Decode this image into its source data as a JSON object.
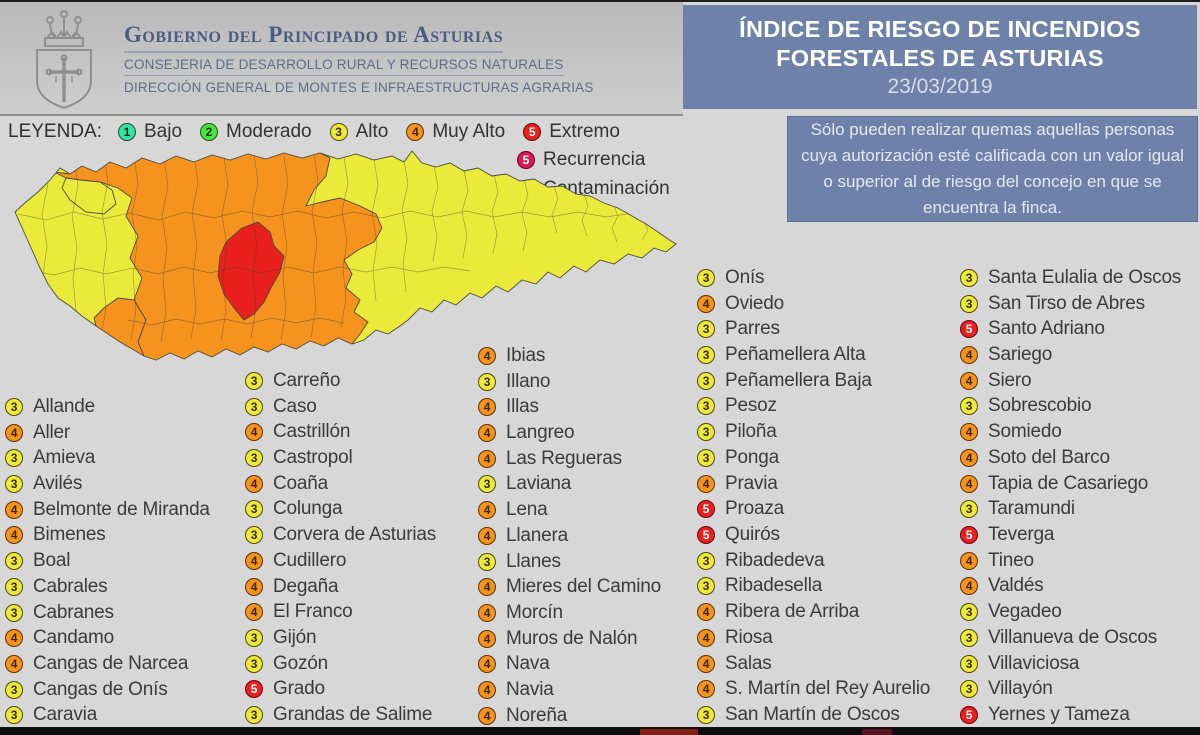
{
  "header": {
    "org_line1": "Gobierno del Principado de Asturias",
    "org_line2": "CONSEJERIA DE DESARROLLO RURAL Y RECURSOS NATURALES",
    "org_line3": "DIRECCIÓN GENERAL DE MONTES E INFRAESTRUCTURAS AGRARIAS",
    "title_line1": "ÍNDICE DE RIESGO DE INCENDIOS",
    "title_line2": "FORESTALES DE ASTURIAS",
    "date": "23/03/2019",
    "title_bg_color": "#6e81a8"
  },
  "legend": {
    "label": "LEYENDA:",
    "items": [
      {
        "value": "1",
        "label": "Bajo",
        "color": "#2fe3ac",
        "light_text": false
      },
      {
        "value": "2",
        "label": "Moderado",
        "color": "#3fe93f",
        "light_text": false
      },
      {
        "value": "3",
        "label": "Alto",
        "color": "#eaea3a",
        "light_text": false
      },
      {
        "value": "4",
        "label": "Muy Alto",
        "color": "#f6921e",
        "light_text": false
      },
      {
        "value": "5",
        "label": "Extremo",
        "color": "#e9201e",
        "light_text": true
      },
      {
        "value": "5",
        "label": "Recurrencia",
        "color": "#d8175c",
        "light_text": true
      },
      {
        "value": "5",
        "label": "Contaminación",
        "color": "#de13a5",
        "light_text": true
      }
    ]
  },
  "notice": {
    "text": "Sólo pueden realizar quemas aquellas personas cuya autorización esté calificada con un valor igual o superior al de riesgo del concejo en que se encuentra la finca."
  },
  "risk_colors": {
    "1": "#2fe3ac",
    "2": "#3fe93f",
    "3": "#eaea3a",
    "4": "#f6921e",
    "5": "#e9201e"
  },
  "municipalities": {
    "columns": [
      [
        {
          "level": 3,
          "name": "Allande"
        },
        {
          "level": 4,
          "name": "Aller"
        },
        {
          "level": 3,
          "name": "Amieva"
        },
        {
          "level": 3,
          "name": "Avilés"
        },
        {
          "level": 4,
          "name": "Belmonte de Miranda"
        },
        {
          "level": 4,
          "name": "Bimenes"
        },
        {
          "level": 3,
          "name": "Boal"
        },
        {
          "level": 3,
          "name": "Cabrales"
        },
        {
          "level": 3,
          "name": "Cabranes"
        },
        {
          "level": 4,
          "name": "Candamo"
        },
        {
          "level": 4,
          "name": "Cangas de Narcea"
        },
        {
          "level": 3,
          "name": "Cangas de Onís"
        },
        {
          "level": 3,
          "name": "Caravia"
        }
      ],
      [
        {
          "level": 3,
          "name": "Carreño"
        },
        {
          "level": 3,
          "name": "Caso"
        },
        {
          "level": 4,
          "name": "Castrillón"
        },
        {
          "level": 3,
          "name": "Castropol"
        },
        {
          "level": 4,
          "name": "Coaña"
        },
        {
          "level": 3,
          "name": "Colunga"
        },
        {
          "level": 3,
          "name": "Corvera de Asturias"
        },
        {
          "level": 4,
          "name": "Cudillero"
        },
        {
          "level": 4,
          "name": "Degaña"
        },
        {
          "level": 4,
          "name": "El Franco"
        },
        {
          "level": 3,
          "name": "Gijón"
        },
        {
          "level": 3,
          "name": "Gozón"
        },
        {
          "level": 5,
          "name": "Grado"
        },
        {
          "level": 3,
          "name": "Grandas de Salime"
        }
      ],
      [
        {
          "level": 4,
          "name": "Ibias"
        },
        {
          "level": 3,
          "name": "Illano"
        },
        {
          "level": 4,
          "name": "Illas"
        },
        {
          "level": 4,
          "name": "Langreo"
        },
        {
          "level": 4,
          "name": "Las Regueras"
        },
        {
          "level": 3,
          "name": "Laviana"
        },
        {
          "level": 4,
          "name": "Lena"
        },
        {
          "level": 4,
          "name": "Llanera"
        },
        {
          "level": 3,
          "name": "Llanes"
        },
        {
          "level": 4,
          "name": "Mieres del Camino"
        },
        {
          "level": 4,
          "name": "Morcín"
        },
        {
          "level": 4,
          "name": "Muros de Nalón"
        },
        {
          "level": 4,
          "name": "Nava"
        },
        {
          "level": 4,
          "name": "Navia"
        },
        {
          "level": 4,
          "name": "Noreña"
        }
      ],
      [
        {
          "level": 3,
          "name": "Onís"
        },
        {
          "level": 4,
          "name": "Oviedo"
        },
        {
          "level": 3,
          "name": "Parres"
        },
        {
          "level": 3,
          "name": "Peñamellera Alta"
        },
        {
          "level": 3,
          "name": "Peñamellera Baja"
        },
        {
          "level": 3,
          "name": "Pesoz"
        },
        {
          "level": 3,
          "name": "Piloña"
        },
        {
          "level": 3,
          "name": "Ponga"
        },
        {
          "level": 4,
          "name": "Pravia"
        },
        {
          "level": 5,
          "name": "Proaza"
        },
        {
          "level": 5,
          "name": "Quirós"
        },
        {
          "level": 3,
          "name": "Ribadedeva"
        },
        {
          "level": 3,
          "name": "Ribadesella"
        },
        {
          "level": 4,
          "name": "Ribera de Arriba"
        },
        {
          "level": 4,
          "name": "Riosa"
        },
        {
          "level": 4,
          "name": "Salas"
        },
        {
          "level": 4,
          "name": "S. Martín del Rey Aurelio"
        },
        {
          "level": 3,
          "name": "San Martín de Oscos"
        }
      ],
      [
        {
          "level": 3,
          "name": "Santa Eulalia de Oscos"
        },
        {
          "level": 3,
          "name": "San Tirso de Abres"
        },
        {
          "level": 5,
          "name": "Santo Adriano"
        },
        {
          "level": 4,
          "name": "Sariego"
        },
        {
          "level": 4,
          "name": "Siero"
        },
        {
          "level": 3,
          "name": "Sobrescobio"
        },
        {
          "level": 4,
          "name": "Somiedo"
        },
        {
          "level": 4,
          "name": "Soto del Barco"
        },
        {
          "level": 4,
          "name": "Tapia de Casariego"
        },
        {
          "level": 3,
          "name": "Taramundi"
        },
        {
          "level": 5,
          "name": "Teverga"
        },
        {
          "level": 4,
          "name": "Tineo"
        },
        {
          "level": 4,
          "name": "Valdés"
        },
        {
          "level": 3,
          "name": "Vegadeo"
        },
        {
          "level": 3,
          "name": "Villanueva de Oscos"
        },
        {
          "level": 3,
          "name": "Villaviciosa"
        },
        {
          "level": 3,
          "name": "Villayón"
        },
        {
          "level": 5,
          "name": "Yernes y Tameza"
        }
      ]
    ]
  }
}
